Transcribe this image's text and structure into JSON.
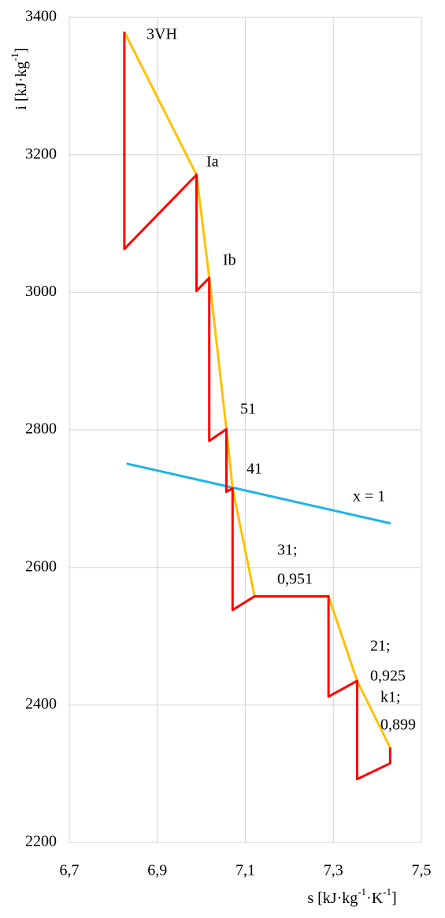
{
  "chart_data": {
    "type": "line",
    "xlabel": [
      "s [kJ·kg",
      "-1",
      "·K",
      "-1",
      "]"
    ],
    "ylabel": [
      "i [kJ·kg",
      "-1",
      "]"
    ],
    "xlim": [
      6.7,
      7.5
    ],
    "xticks": [
      {
        "value": 6.7,
        "label": "6,7"
      },
      {
        "value": 6.9,
        "label": "6,9"
      },
      {
        "value": 7.1,
        "label": "7,1"
      },
      {
        "value": 7.3,
        "label": "7,3"
      },
      {
        "value": 7.5,
        "label": "7,5"
      }
    ],
    "ylim": [
      2200,
      3400
    ],
    "yticks": [
      2200,
      2400,
      2600,
      2800,
      3000,
      3200,
      3400
    ],
    "grid": true,
    "series": [
      {
        "color": "#ff0000",
        "x": [
          6.825,
          6.825,
          6.989,
          6.989,
          7.018,
          7.018,
          7.057,
          7.057,
          7.071,
          7.071,
          7.121,
          7.289,
          7.289,
          7.354,
          7.354,
          7.429,
          7.429
        ],
        "values": [
          3379,
          3063,
          3171,
          3002,
          3021,
          2784,
          2801,
          2710,
          2715,
          2538,
          2558,
          2558,
          2412,
          2435,
          2292,
          2315,
          2338
        ]
      },
      {
        "color": "#ffc000",
        "x": [
          6.825,
          6.989,
          7.018,
          7.057,
          7.071,
          7.121,
          7.289,
          7.354,
          7.429
        ],
        "values": [
          3379,
          3171,
          3021,
          2801,
          2715,
          2558,
          2558,
          2435,
          2338
        ]
      },
      {
        "color": "#1eb4e6",
        "x": [
          6.83,
          7.43
        ],
        "values": [
          2751,
          2664
        ]
      }
    ],
    "annotations": [
      "3VH",
      "Ia",
      "Ib",
      "51",
      "41",
      "x = 1",
      "31;",
      "0,951",
      "21;",
      "0,925",
      "k1;",
      "0,899"
    ]
  }
}
